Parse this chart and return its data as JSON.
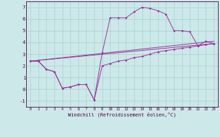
{
  "xlabel": "Windchill (Refroidissement éolien,°C)",
  "bg_color": "#cce8e8",
  "line_color": "#993399",
  "grid_color": "#aad4d4",
  "xlim": [
    -0.5,
    23.5
  ],
  "ylim": [
    -1.5,
    7.5
  ],
  "xticks": [
    0,
    1,
    2,
    3,
    4,
    5,
    6,
    7,
    8,
    9,
    10,
    11,
    12,
    13,
    14,
    15,
    16,
    17,
    18,
    19,
    20,
    21,
    22,
    23
  ],
  "yticks": [
    -1,
    0,
    1,
    2,
    3,
    4,
    5,
    6,
    7
  ],
  "line1_x": [
    0,
    1,
    2,
    3,
    4,
    5,
    6,
    7,
    8,
    9,
    10,
    11,
    12,
    13,
    14,
    15,
    16,
    17,
    18,
    19,
    20,
    21,
    22,
    23
  ],
  "line1_y": [
    2.4,
    2.4,
    1.7,
    1.5,
    0.1,
    0.2,
    0.4,
    0.4,
    -0.9,
    3.1,
    6.1,
    6.1,
    6.1,
    6.6,
    7.0,
    6.9,
    6.7,
    6.4,
    5.0,
    5.0,
    4.9,
    3.7,
    4.1,
    3.9
  ],
  "line2_x": [
    0,
    1,
    2,
    3,
    4,
    5,
    6,
    7,
    8,
    9,
    10,
    11,
    12,
    13,
    14,
    15,
    16,
    17,
    18,
    19,
    20,
    21,
    22,
    23
  ],
  "line2_y": [
    2.4,
    2.4,
    1.7,
    1.5,
    0.1,
    0.2,
    0.4,
    0.4,
    -0.9,
    2.0,
    2.2,
    2.4,
    2.5,
    2.7,
    2.8,
    3.0,
    3.2,
    3.3,
    3.4,
    3.5,
    3.6,
    3.7,
    3.8,
    3.9
  ],
  "line3_x": [
    0,
    23
  ],
  "line3_y": [
    2.4,
    3.9
  ],
  "line4_x": [
    0,
    23
  ],
  "line4_y": [
    2.4,
    4.1
  ]
}
